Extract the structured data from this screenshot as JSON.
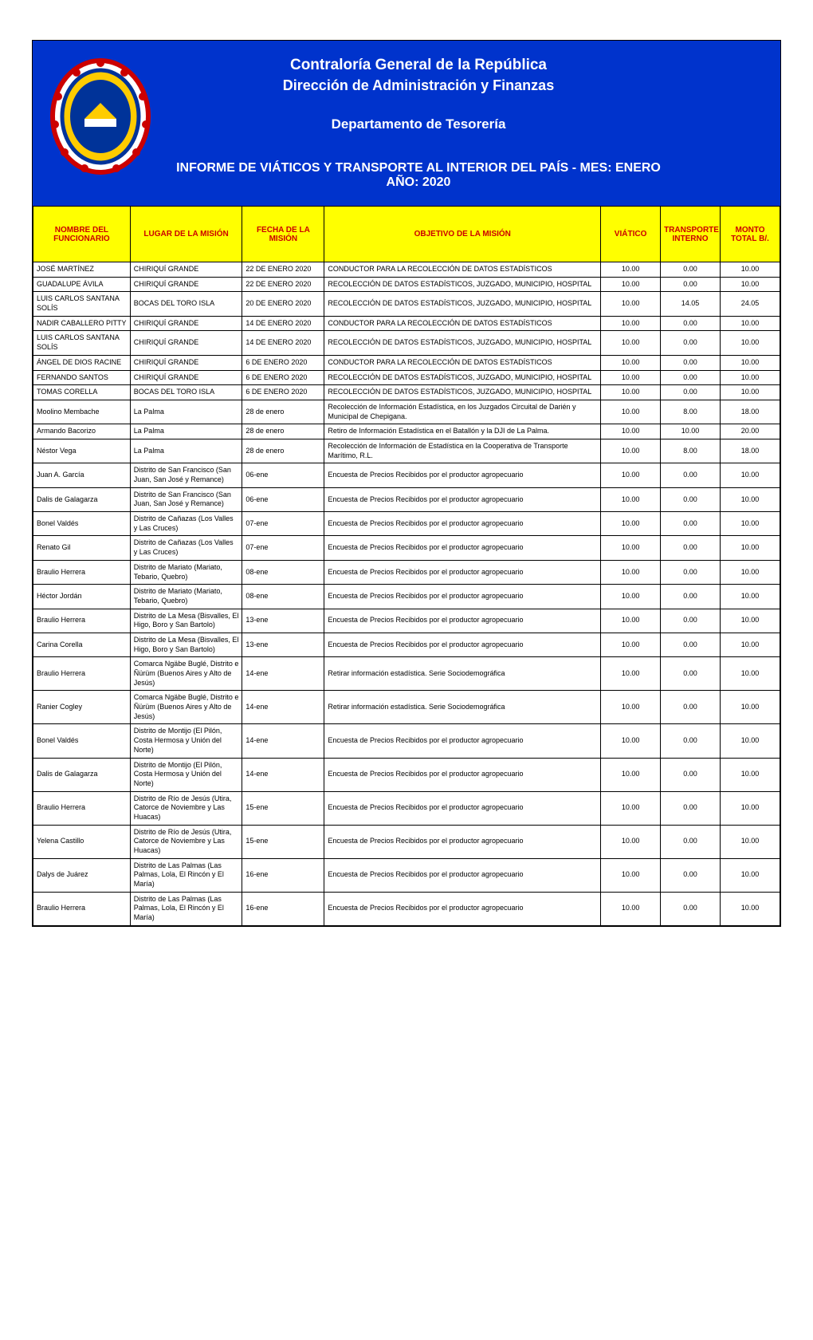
{
  "header": {
    "line1": "Contraloría General de la República",
    "line2": "Dirección de Administración y Finanzas",
    "line3": "Departamento de Tesorería",
    "line4": "INFORME DE VIÁTICOS Y TRANSPORTE AL INTERIOR DEL PAÍS  - MES:  ENERO AÑO: 2020"
  },
  "colors": {
    "header_bg": "#0033cc",
    "header_text": "#ffffff",
    "th_bg": "#ffff00",
    "th_text": "#cc0000",
    "border": "#000000",
    "cell_text": "#000000"
  },
  "columns": [
    "NOMBRE DEL FUNCIONARIO",
    "LUGAR DE LA MISIÓN",
    "FECHA DE LA MISIÓN",
    "OBJETIVO DE LA MISIÓN",
    "VIÁTICO",
    "TRANSPORTE INTERNO",
    "MONTO TOTAL B/."
  ],
  "rows": [
    [
      "JOSÉ MARTÍNEZ",
      "CHIRIQUÍ GRANDE",
      "22 DE ENERO 2020",
      "CONDUCTOR PARA LA RECOLECCIÓN DE DATOS ESTADÍSTICOS",
      "10.00",
      "0.00",
      "10.00"
    ],
    [
      "GUADALUPE ÁVILA",
      "CHIRIQUÍ GRANDE",
      "22 DE ENERO 2020",
      "RECOLECCIÓN DE DATOS ESTADÍSTICOS, JUZGADO, MUNICIPIO, HOSPITAL",
      "10.00",
      "0.00",
      "10.00"
    ],
    [
      "LUIS CARLOS SANTANA SOLÍS",
      "BOCAS DEL TORO ISLA",
      "20 DE ENERO 2020",
      "RECOLECCIÓN DE DATOS ESTADÍSTICOS, JUZGADO, MUNICIPIO, HOSPITAL",
      "10.00",
      "14.05",
      "24.05"
    ],
    [
      "NADIR CABALLERO PITTY",
      "CHIRIQUÍ GRANDE",
      "14 DE ENERO 2020",
      "CONDUCTOR PARA LA RECOLECCIÓN DE DATOS ESTADÍSTICOS",
      "10.00",
      "0.00",
      "10.00"
    ],
    [
      "LUIS CARLOS SANTANA SOLÍS",
      "CHIRIQUÍ GRANDE",
      "14 DE ENERO 2020",
      "RECOLECCIÓN DE DATOS ESTADÍSTICOS, JUZGADO, MUNICIPIO, HOSPITAL",
      "10.00",
      "0.00",
      "10.00"
    ],
    [
      "ÁNGEL DE DIOS RACINE",
      "CHIRIQUÍ GRANDE",
      "6 DE ENERO 2020",
      "CONDUCTOR PARA LA RECOLECCIÓN DE DATOS ESTADÍSTICOS",
      "10.00",
      "0.00",
      "10.00"
    ],
    [
      "FERNANDO SANTOS",
      "CHIRIQUÍ GRANDE",
      "6 DE ENERO 2020",
      "RECOLECCIÓN DE DATOS ESTADÍSTICOS, JUZGADO, MUNICIPIO, HOSPITAL",
      "10.00",
      "0.00",
      "10.00"
    ],
    [
      "TOMAS CORELLA",
      "BOCAS DEL TORO ISLA",
      "6 DE ENERO 2020",
      "RECOLECCIÓN DE DATOS ESTADÍSTICOS, JUZGADO, MUNICIPIO, HOSPITAL",
      "10.00",
      "0.00",
      "10.00"
    ],
    [
      "Moolino Membache",
      "La Palma",
      "28 de enero",
      "Recolección de Información Estadística, en los Juzgados Circuital de Darién y Municipal de Chepigana.",
      "10.00",
      "8.00",
      "18.00"
    ],
    [
      "Armando Bacorizo",
      "La Palma",
      "28 de enero",
      "Retiro de Información Estadística  en el Batallón y la DJI de La Palma.",
      "10.00",
      "10.00",
      "20.00"
    ],
    [
      "Néstor Vega",
      "La Palma",
      "28 de enero",
      "Recolección de Información de Estadística en la Cooperativa  de Transporte Marítimo, R.L.",
      "10.00",
      "8.00",
      "18.00"
    ],
    [
      "Juan A. García",
      "Distrito de San Francisco (San Juan, San José y Remance)",
      "06-ene",
      "Encuesta de Precios Recibidos por el productor agropecuario",
      "10.00",
      "0.00",
      "10.00"
    ],
    [
      "Dalis de Galagarza",
      "Distrito de San Francisco (San Juan, San José y Remance)",
      "06-ene",
      "Encuesta de Precios Recibidos por el productor agropecuario",
      "10.00",
      "0.00",
      "10.00"
    ],
    [
      "Bonel Valdés",
      "Distrito de Cañazas (Los Valles y Las Cruces)",
      "07-ene",
      "Encuesta de Precios Recibidos por el productor agropecuario",
      "10.00",
      "0.00",
      "10.00"
    ],
    [
      "Renato Gil",
      "Distrito de Cañazas (Los Valles y Las Cruces)",
      "07-ene",
      "Encuesta de Precios Recibidos por el productor agropecuario",
      "10.00",
      "0.00",
      "10.00"
    ],
    [
      "Braulio Herrera",
      "Distrito de Mariato (Mariato, Tebario, Quebro)",
      "08-ene",
      "Encuesta de Precios Recibidos por el productor agropecuario",
      "10.00",
      "0.00",
      "10.00"
    ],
    [
      "Héctor Jordán",
      "Distrito de Mariato (Mariato, Tebario, Quebro)",
      "08-ene",
      "Encuesta de Precios Recibidos por el productor agropecuario",
      "10.00",
      "0.00",
      "10.00"
    ],
    [
      "Braulio Herrera",
      "Distrito de La Mesa (Bisvalles, El Higo, Boro y San Bartolo)",
      "13-ene",
      "Encuesta de Precios Recibidos por el productor agropecuario",
      "10.00",
      "0.00",
      "10.00"
    ],
    [
      "Carina Corella",
      "Distrito de La Mesa (Bisvalles, El Higo, Boro y San Bartolo)",
      "13-ene",
      "Encuesta de Precios Recibidos por el productor agropecuario",
      "10.00",
      "0.00",
      "10.00"
    ],
    [
      "Braulio Herrera",
      "Comarca Ngäbe Buglé, Distrito e Ñürüm (Buenos Aires y Alto de Jesús)",
      "14-ene",
      "Retirar información estadística. Serie Sociodemográfica",
      "10.00",
      "0.00",
      "10.00"
    ],
    [
      "Ranier Cogley",
      "Comarca Ngäbe Buglé, Distrito e Ñürüm (Buenos Aires y Alto de Jesús)",
      "14-ene",
      "Retirar información estadística. Serie Sociodemográfica",
      "10.00",
      "0.00",
      "10.00"
    ],
    [
      "Bonel Valdés",
      "Distrito de Montijo (El Pilón, Costa Hermosa y Unión del Norte)",
      "14-ene",
      "Encuesta de Precios Recibidos por el productor agropecuario",
      "10.00",
      "0.00",
      "10.00"
    ],
    [
      "Dalis de Galagarza",
      "Distrito de Montijo (El Pilón, Costa Hermosa y Unión del Norte)",
      "14-ene",
      "Encuesta de Precios Recibidos por el productor agropecuario",
      "10.00",
      "0.00",
      "10.00"
    ],
    [
      "Braulio Herrera",
      "Distrito de Río de Jesús (Utira, Catorce de Noviembre y Las Huacas)",
      "15-ene",
      "Encuesta de Precios Recibidos por el productor agropecuario",
      "10.00",
      "0.00",
      "10.00"
    ],
    [
      "Yelena Castillo",
      "Distrito de Río de Jesús (Utira, Catorce de Noviembre y Las Huacas)",
      "15-ene",
      "Encuesta de Precios Recibidos por el productor agropecuario",
      "10.00",
      "0.00",
      "10.00"
    ],
    [
      "Dalys de Juárez",
      "Distrito de Las Palmas (Las Palmas, Lola, El Rincón y El María)",
      "16-ene",
      "Encuesta de Precios Recibidos por el productor agropecuario",
      "10.00",
      "0.00",
      "10.00"
    ],
    [
      "Braulio Herrera",
      "Distrito de Las Palmas (Las Palmas, Lola, El Rincón y El María)",
      "16-ene",
      "Encuesta de Precios Recibidos por el productor agropecuario",
      "10.00",
      "0.00",
      "10.00"
    ]
  ]
}
